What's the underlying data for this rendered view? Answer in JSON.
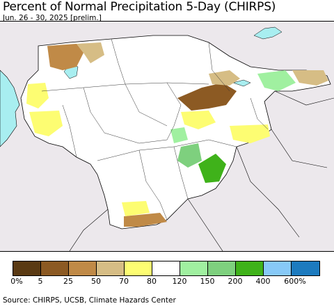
{
  "header": {
    "title": "Percent of Normal Precipitation 5-Day (CHIRPS)",
    "subtitle": "Jun. 26 - 30, 2025 [prelim.]"
  },
  "legend": {
    "colors": [
      "#5a3a13",
      "#8c5a23",
      "#c08a47",
      "#d6bd85",
      "#fdfd72",
      "#ffffff",
      "#a0f0a0",
      "#7ed07e",
      "#3fb21a",
      "#87c9f7",
      "#1d7bbf"
    ],
    "tick_labels": [
      "0%",
      "5",
      "25",
      "50",
      "70",
      "80",
      "120",
      "150",
      "200",
      "400",
      "600%"
    ]
  },
  "map": {
    "colors": {
      "background": "#ece8ec",
      "region_fill": "#ffffff",
      "water": "#a8eef0",
      "border": "#000000"
    }
  },
  "footer": {
    "source": "Source: CHIRPS, UCSB, Climate Hazards Center"
  }
}
